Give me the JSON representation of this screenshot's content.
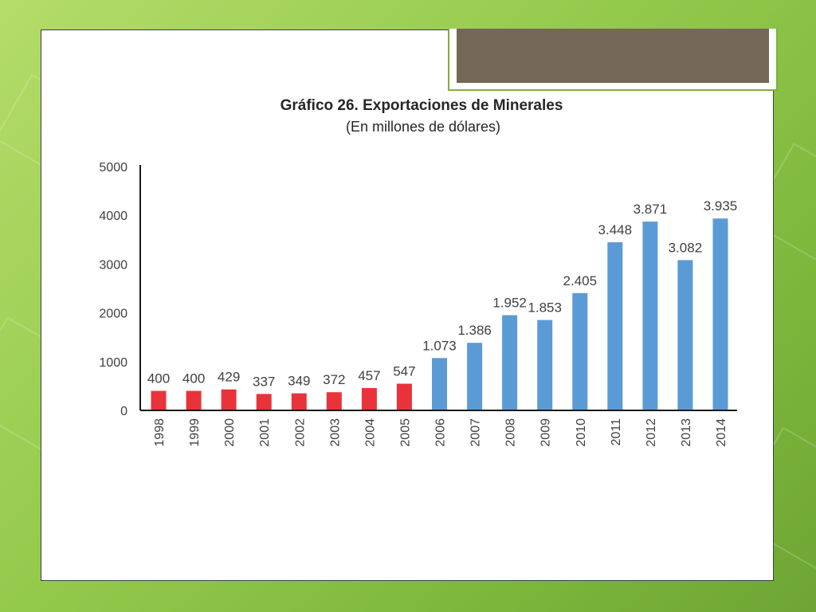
{
  "slide": {
    "header_band_color": "#736858",
    "frame_accent": "#7fb040"
  },
  "chart_data": {
    "type": "bar",
    "title": "Gráfico 26. Exportaciones de Minerales",
    "subtitle": "(En millones de dólares)",
    "xlabel": "",
    "ylabel": "",
    "ylim": [
      0,
      5000
    ],
    "yticks": [
      "5000",
      "4000",
      "3000",
      "2000",
      "1000",
      "0"
    ],
    "ytick_values": [
      5000,
      4000,
      3000,
      2000,
      1000,
      0
    ],
    "grid": false,
    "legend": "none",
    "categories": [
      "1998",
      "1999",
      "2000",
      "2001",
      "2002",
      "2003",
      "2004",
      "2005",
      "2006",
      "2007",
      "2008",
      "2009",
      "2010",
      "2011",
      "2012",
      "2013",
      "2014"
    ],
    "values": [
      400,
      400,
      429,
      337,
      349,
      372,
      457,
      547,
      1073,
      1386,
      1952,
      1853,
      2405,
      3448,
      3871,
      3082,
      3935
    ],
    "labels": [
      "400",
      "400",
      "429",
      "337",
      "349",
      "372",
      "457",
      "547",
      "1.073",
      "1.386",
      "1.952",
      "1.853",
      "2.405",
      "3.448",
      "3.871",
      "3.082",
      "3.935"
    ],
    "colors": {
      "period_1": "#e8333a",
      "period_2": "#5b9bd5",
      "axis": "#1a1a1a",
      "text": "#404040"
    },
    "color_split_index": 8
  }
}
